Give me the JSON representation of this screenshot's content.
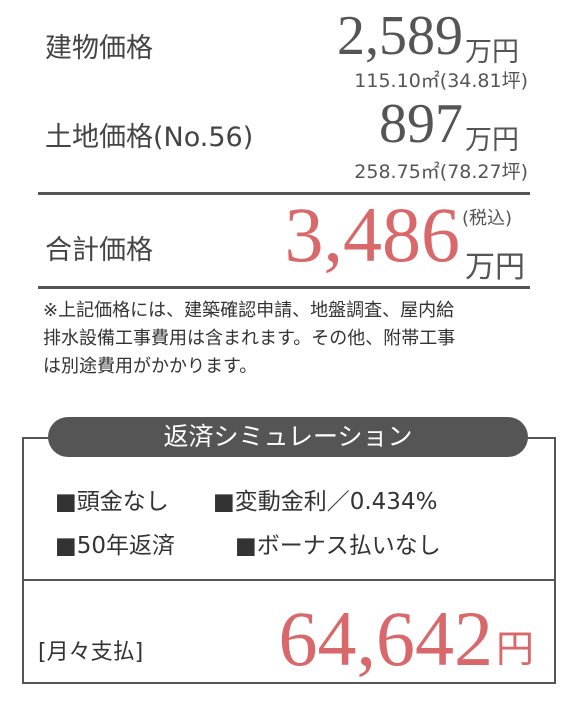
{
  "building": {
    "label": "建物価格",
    "price": "2,589",
    "unit": "万円",
    "area": "115.10㎡(34.81坪)"
  },
  "land": {
    "label": "土地価格(No.56)",
    "price": "897",
    "unit": "万円",
    "area": "258.75㎡(78.27坪)"
  },
  "total": {
    "label": "合計価格",
    "price": "3,486",
    "tax": "(税込)",
    "unit": "万円"
  },
  "note": [
    "※上記価格には、建築確認申請、地盤調査、屋内給",
    "排水設備工事費用は含まれます。その他、附帯工事",
    "は別途費用がかかります。"
  ],
  "simulation": {
    "title": "返済シミュレーション",
    "conditions": [
      "■頭金なし",
      "■変動金利／0.434%",
      "■50年返済",
      "■ボーナス払いなし"
    ],
    "monthly_label": "[月々支払]",
    "monthly": "64,642",
    "monthly_unit": "円"
  }
}
